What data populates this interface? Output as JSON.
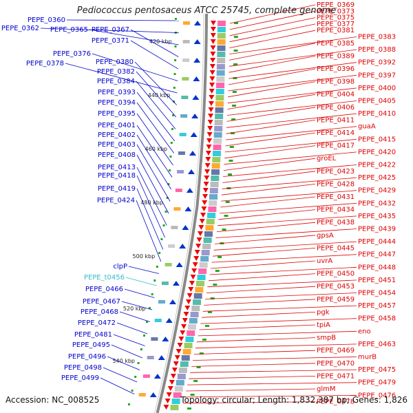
{
  "title": "Pediococcus pentosaceus ATCC 25745, complete genome",
  "footer": {
    "accession": "Accession: NC_008525",
    "topology": "Topology: circular; Length: 1,832,387 bp; Genes: 1,826"
  },
  "colors": {
    "left_label": "#0000cc",
    "right_label": "#dd0000",
    "trna_label": "#33bbcc",
    "backbone": "#888888",
    "forward_arrow": "#0033cc",
    "reverse_arrow": "#ee0000",
    "tick": "#22aa22"
  },
  "scale_ticks": [
    "420 kbp",
    "440 kbp",
    "460 kbp",
    "480 kbp",
    "500 kbp",
    "520 kbp",
    "540 kbp"
  ],
  "left_labels": [
    "PEPE_0360",
    "PEPE_0362",
    "PEPE_0365",
    "PEPE_0367",
    "PEPE_0371",
    "PEPE_0376",
    "PEPE_0378",
    "PEPE_0380",
    "PEPE_0382",
    "PEPE_0384",
    "PEPE_0393",
    "PEPE_0394",
    "PEPE_0395",
    "PEPE_0401",
    "PEPE_0402",
    "PEPE_0403",
    "PEPE_0408",
    "PEPE_0413",
    "PEPE_0418",
    "PEPE_0419",
    "PEPE_0424",
    "clpP",
    "PEPE_t0456",
    "PEPE_0466",
    "PEPE_0467",
    "PEPE_0468",
    "PEPE_0472",
    "PEPE_0481",
    "PEPE_0495",
    "PEPE_0496",
    "PEPE_0498",
    "PEPE_0499"
  ],
  "right_labels": [
    "PEPE_0369",
    "PEPE_0373",
    "PEPE_0375",
    "PEPE_0377",
    "PEPE_0381",
    "PEPE_0383",
    "PEPE_0385",
    "PEPE_0388",
    "PEPE_0389",
    "PEPE_0392",
    "PEPE_0396",
    "PEPE_0397",
    "PEPE_0398",
    "PEPE_0400",
    "PEPE_0404",
    "PEPE_0405",
    "PEPE_0406",
    "PEPE_0410",
    "PEPE_0411",
    "guaA",
    "PEPE_0414",
    "PEPE_0415",
    "PEPE_0417",
    "PEPE_0420",
    "groEL",
    "PEPE_0422",
    "PEPE_0423",
    "PEPE_0425",
    "PEPE_0428",
    "PEPE_0429",
    "PEPE_0431",
    "PEPE_0432",
    "PEPE_0434",
    "PEPE_0435",
    "PEPE_0438",
    "PEPE_0439",
    "gpsA",
    "PEPE_0444",
    "PEPE_0445",
    "PEPE_0447",
    "uvrA",
    "PEPE_0448",
    "PEPE_0450",
    "PEPE_0451",
    "PEPE_0453",
    "PEPE_0454",
    "PEPE_0459",
    "PEPE_0457",
    "pgk",
    "PEPE_0458",
    "tpiA",
    "eno",
    "smpB",
    "PEPE_0463",
    "PEPE_0469",
    "murB",
    "PEPE_0470",
    "PEPE_0475",
    "PEPE_0471",
    "PEPE_0479",
    "glmM",
    "PEPE_0476",
    "PEPE_0478"
  ]
}
